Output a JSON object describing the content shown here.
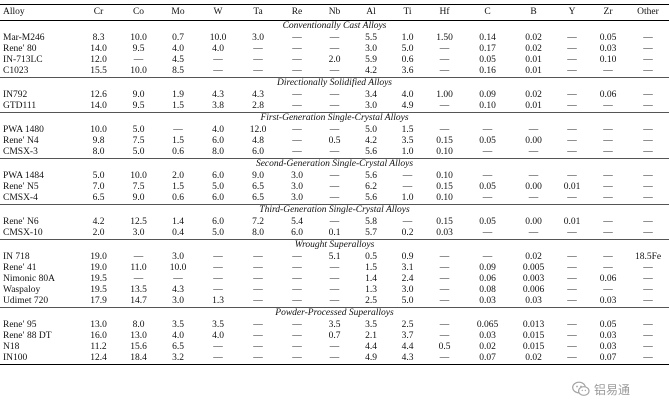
{
  "columns": [
    "Alloy",
    "Cr",
    "Co",
    "Mo",
    "W",
    "Ta",
    "Re",
    "Nb",
    "Al",
    "Ti",
    "Hf",
    "C",
    "B",
    "Y",
    "Zr",
    "Other"
  ],
  "groups": [
    {
      "title": "Conventionally Cast Alloys",
      "rows": [
        [
          "Mar-M246",
          "8.3",
          "10.0",
          "0.7",
          "10.0",
          "3.0",
          "—",
          "—",
          "5.5",
          "1.0",
          "1.50",
          "0.14",
          "0.02",
          "—",
          "0.05",
          "—"
        ],
        [
          "Rene′ 80",
          "14.0",
          "9.5",
          "4.0",
          "4.0",
          "—",
          "—",
          "—",
          "3.0",
          "5.0",
          "—",
          "0.17",
          "0.02",
          "—",
          "0.03",
          "—"
        ],
        [
          "IN-713LC",
          "12.0",
          "—",
          "4.5",
          "—",
          "—",
          "—",
          "2.0",
          "5.9",
          "0.6",
          "—",
          "0.05",
          "0.01",
          "—",
          "0.10",
          "—"
        ],
        [
          "C1023",
          "15.5",
          "10.0",
          "8.5",
          "—",
          "—",
          "—",
          "—",
          "4.2",
          "3.6",
          "—",
          "0.16",
          "0.01",
          "—",
          "—",
          "—"
        ]
      ]
    },
    {
      "title": "Directionally Solidified Alloys",
      "rows": [
        [
          "IN792",
          "12.6",
          "9.0",
          "1.9",
          "4.3",
          "4.3",
          "—",
          "—",
          "3.4",
          "4.0",
          "1.00",
          "0.09",
          "0.02",
          "—",
          "0.06",
          "—"
        ],
        [
          "GTD111",
          "14.0",
          "9.5",
          "1.5",
          "3.8",
          "2.8",
          "—",
          "—",
          "3.0",
          "4.9",
          "—",
          "0.10",
          "0.01",
          "—",
          "—",
          "—"
        ]
      ]
    },
    {
      "title": "First-Generation Single-Crystal Alloys",
      "rows": [
        [
          "PWA 1480",
          "10.0",
          "5.0",
          "—",
          "4.0",
          "12.0",
          "—",
          "—",
          "5.0",
          "1.5",
          "—",
          "—",
          "—",
          "—",
          "—",
          "—"
        ],
        [
          "Rene′ N4",
          "9.8",
          "7.5",
          "1.5",
          "6.0",
          "4.8",
          "—",
          "0.5",
          "4.2",
          "3.5",
          "0.15",
          "0.05",
          "0.00",
          "—",
          "—",
          "—"
        ],
        [
          "CMSX-3",
          "8.0",
          "5.0",
          "0.6",
          "8.0",
          "6.0",
          "—",
          "—",
          "5.6",
          "1.0",
          "0.10",
          "—",
          "—",
          "—",
          "—",
          "—"
        ]
      ]
    },
    {
      "title": "Second-Generation Single-Crystal Alloys",
      "rows": [
        [
          "PWA 1484",
          "5.0",
          "10.0",
          "2.0",
          "6.0",
          "9.0",
          "3.0",
          "—",
          "5.6",
          "—",
          "0.10",
          "—",
          "—",
          "—",
          "—",
          "—"
        ],
        [
          "Rene′ N5",
          "7.0",
          "7.5",
          "1.5",
          "5.0",
          "6.5",
          "3.0",
          "—",
          "6.2",
          "—",
          "0.15",
          "0.05",
          "0.00",
          "0.01",
          "—",
          "—"
        ],
        [
          "CMSX-4",
          "6.5",
          "9.0",
          "0.6",
          "6.0",
          "6.5",
          "3.0",
          "—",
          "5.6",
          "1.0",
          "0.10",
          "—",
          "—",
          "—",
          "—",
          "—"
        ]
      ]
    },
    {
      "title": "Third-Generation Single-Crystal Alloys",
      "rows": [
        [
          "Rene′ N6",
          "4.2",
          "12.5",
          "1.4",
          "6.0",
          "7.2",
          "5.4",
          "—",
          "5.8",
          "—",
          "0.15",
          "0.05",
          "0.00",
          "0.01",
          "—",
          "—"
        ],
        [
          "CMSX-10",
          "2.0",
          "3.0",
          "0.4",
          "5.0",
          "8.0",
          "6.0",
          "0.1",
          "5.7",
          "0.2",
          "0.03",
          "—",
          "—",
          "—",
          "—",
          "—"
        ]
      ]
    },
    {
      "title": "Wrought Superalloys",
      "rows": [
        [
          "IN 718",
          "19.0",
          "—",
          "3.0",
          "—",
          "—",
          "—",
          "5.1",
          "0.5",
          "0.9",
          "—",
          "—",
          "0.02",
          "—",
          "—",
          "18.5Fe"
        ],
        [
          "Rene′ 41",
          "19.0",
          "11.0",
          "10.0",
          "—",
          "—",
          "—",
          "—",
          "1.5",
          "3.1",
          "—",
          "0.09",
          "0.005",
          "—",
          "—",
          "—"
        ],
        [
          "Nimonic 80A",
          "19.5",
          "—",
          "—",
          "—",
          "—",
          "—",
          "—",
          "1.4",
          "2.4",
          "—",
          "0.06",
          "0.003",
          "—",
          "0.06",
          "—"
        ],
        [
          "Waspaloy",
          "19.5",
          "13.5",
          "4.3",
          "—",
          "—",
          "—",
          "—",
          "1.3",
          "3.0",
          "—",
          "0.08",
          "0.006",
          "—",
          "—",
          "—"
        ],
        [
          "Udimet 720",
          "17.9",
          "14.7",
          "3.0",
          "1.3",
          "—",
          "—",
          "—",
          "2.5",
          "5.0",
          "—",
          "0.03",
          "0.03",
          "—",
          "0.03",
          "—"
        ]
      ]
    },
    {
      "title": "Powder-Processed Superalloys",
      "rows": [
        [
          "Rene′ 95",
          "13.0",
          "8.0",
          "3.5",
          "3.5",
          "—",
          "—",
          "3.5",
          "3.5",
          "2.5",
          "—",
          "0.065",
          "0.013",
          "—",
          "0.05",
          "—"
        ],
        [
          "Rene′ 88 DT",
          "16.0",
          "13.0",
          "4.0",
          "4.0",
          "—",
          "—",
          "0.7",
          "2.1",
          "3.7",
          "—",
          "0.03",
          "0.015",
          "—",
          "0.03",
          "—"
        ],
        [
          "N18",
          "11.2",
          "15.6",
          "6.5",
          "—",
          "—",
          "—",
          "—",
          "4.4",
          "4.4",
          "0.5",
          "0.02",
          "0.015",
          "—",
          "0.03",
          "—"
        ],
        [
          "IN100",
          "12.4",
          "18.4",
          "3.2",
          "—",
          "—",
          "—",
          "—",
          "4.9",
          "4.3",
          "—",
          "0.07",
          "0.02",
          "—",
          "0.07",
          "—"
        ]
      ]
    }
  ],
  "watermark": {
    "text": "铝易通",
    "icon": "wechat-icon",
    "color": "#9a9a9a"
  }
}
